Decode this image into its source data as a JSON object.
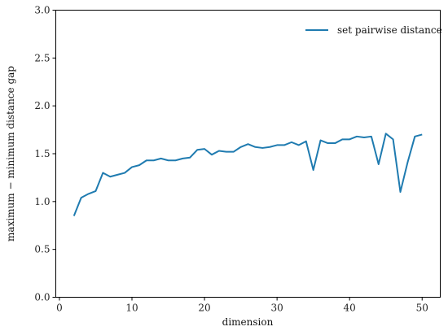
{
  "chart_data": {
    "type": "line",
    "title": "",
    "xlabel": "dimension",
    "ylabel": "maximum − minimum distance gap",
    "xlim": [
      -0.5,
      52.5
    ],
    "ylim": [
      0.0,
      3.0
    ],
    "xticks": [
      0,
      10,
      20,
      30,
      40,
      50
    ],
    "yticks": [
      0.0,
      0.5,
      1.0,
      1.5,
      2.0,
      2.5,
      3.0
    ],
    "xtick_labels": [
      "0",
      "10",
      "20",
      "30",
      "40",
      "50"
    ],
    "ytick_labels": [
      "0.0",
      "0.5",
      "1.0",
      "1.5",
      "2.0",
      "2.5",
      "3.0"
    ],
    "grid": false,
    "legend": {
      "position": "top-right",
      "entries": [
        "set pairwise distance"
      ]
    },
    "series": [
      {
        "name": "set pairwise distance",
        "color": "#1f7bb0",
        "x": [
          2,
          3,
          4,
          5,
          6,
          7,
          8,
          9,
          10,
          11,
          12,
          13,
          14,
          15,
          16,
          17,
          18,
          19,
          20,
          21,
          22,
          23,
          24,
          25,
          26,
          27,
          28,
          29,
          30,
          31,
          32,
          33,
          34,
          35,
          36,
          37,
          38,
          39,
          40,
          41,
          42,
          43,
          44,
          45,
          46,
          47,
          48,
          49,
          50
        ],
        "y": [
          0.85,
          1.04,
          1.08,
          1.11,
          1.3,
          1.26,
          1.28,
          1.3,
          1.36,
          1.38,
          1.43,
          1.43,
          1.45,
          1.43,
          1.43,
          1.45,
          1.46,
          1.54,
          1.55,
          1.49,
          1.53,
          1.52,
          1.52,
          1.57,
          1.6,
          1.57,
          1.56,
          1.57,
          1.59,
          1.59,
          1.62,
          1.59,
          1.63,
          1.33,
          1.64,
          1.61,
          1.61,
          1.65,
          1.65,
          1.68,
          1.67,
          1.68,
          1.39,
          1.71,
          1.65,
          1.1,
          1.41,
          1.68,
          1.7
        ]
      }
    ]
  }
}
